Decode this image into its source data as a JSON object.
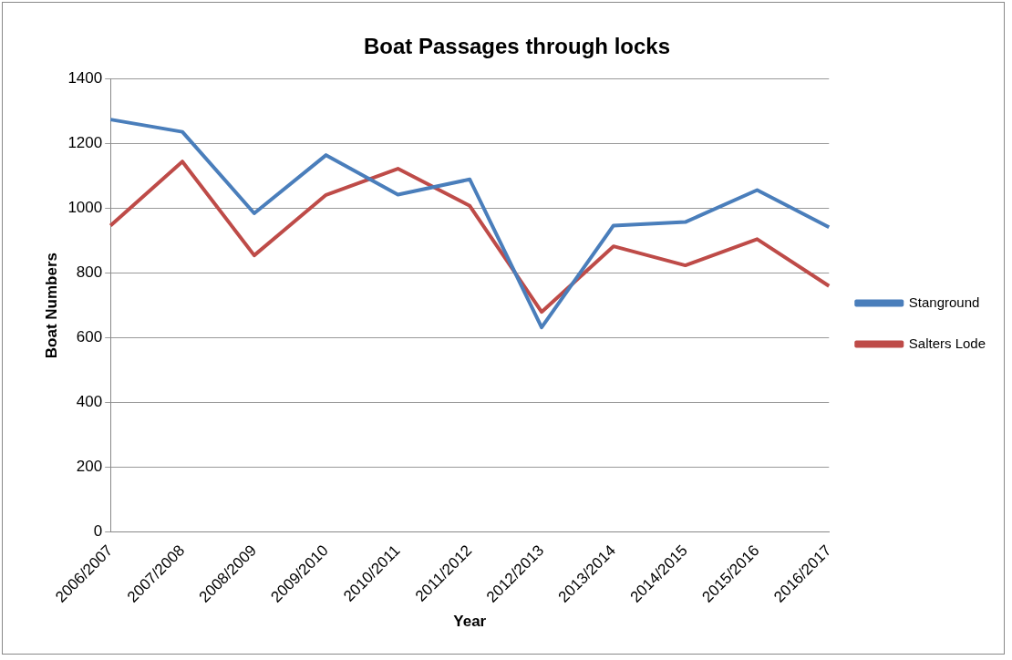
{
  "chart_data": {
    "type": "line",
    "title": "Boat Passages through locks",
    "xlabel": "Year",
    "ylabel": "Boat Numbers",
    "categories": [
      "2006/2007",
      "2007/2008",
      "2008/2009",
      "2009/2010",
      "2010/2011",
      "2011/2012",
      "2012/2013",
      "2013/2014",
      "2014/2015",
      "2015/2016",
      "2016/2017"
    ],
    "series": [
      {
        "name": "Stanground",
        "color": "#4a7ebb",
        "values": [
          1275,
          1237,
          985,
          1165,
          1043,
          1090,
          632,
          947,
          958,
          1057,
          942
        ]
      },
      {
        "name": "Salters Lode",
        "color": "#be4b48",
        "values": [
          947,
          1145,
          855,
          1042,
          1123,
          1008,
          680,
          883,
          824,
          905,
          760
        ]
      }
    ],
    "ylim": [
      0,
      1400
    ],
    "yticks": [
      0,
      200,
      400,
      600,
      800,
      1000,
      1200,
      1400
    ],
    "grid": "y",
    "legend": "right",
    "marker": "none"
  }
}
